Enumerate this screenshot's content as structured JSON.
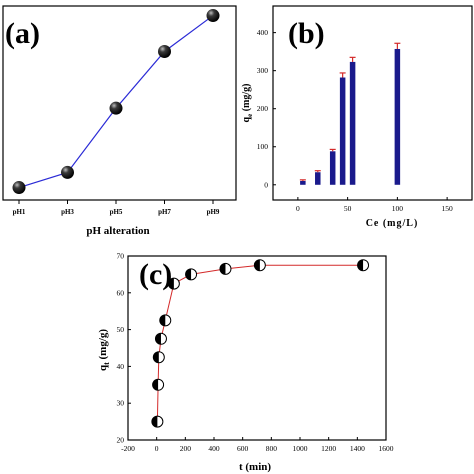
{
  "chart_data": [
    {
      "panel": "(a)",
      "type": "line",
      "categories": [
        "pH1",
        "pH3",
        "pH5",
        "pH7",
        "pH9"
      ],
      "values": [
        0.05,
        0.13,
        0.47,
        0.77,
        0.96
      ],
      "ylim": [
        0,
        1
      ],
      "xlabel": "pH alteration",
      "ylabel": "",
      "line_color": "#2b2bd6",
      "marker": "black-sphere"
    },
    {
      "panel": "(b)",
      "type": "bar",
      "x": [
        5,
        20,
        35,
        45,
        55,
        100
      ],
      "values": [
        10,
        33,
        88,
        282,
        323,
        357
      ],
      "errors": [
        3,
        4,
        5,
        12,
        12,
        15
      ],
      "xlim": [
        -25,
        175
      ],
      "xticks": [
        0,
        50,
        100,
        150
      ],
      "ylim": [
        -40,
        470
      ],
      "yticks": [
        0,
        100,
        200,
        300,
        400
      ],
      "xlabel": "Ce (mg/L)",
      "ylabel": "qe (mg/g)",
      "ylabel_main": "q",
      "ylabel_sub": "e",
      "ylabel_rest": " (mg/g)",
      "bar_color": "#1a1a8c",
      "error_color": "#d42a2a"
    },
    {
      "panel": "(c)",
      "type": "line",
      "x": [
        5,
        10,
        15,
        30,
        60,
        120,
        240,
        480,
        720,
        1440
      ],
      "values": [
        25,
        35,
        42.5,
        47.5,
        52.5,
        62.5,
        65,
        66.5,
        67.5,
        67.5
      ],
      "xlim": [
        -200,
        1600
      ],
      "xticks": [
        -200,
        0,
        200,
        400,
        600,
        800,
        1000,
        1200,
        1400,
        1600
      ],
      "ylim": [
        20,
        70
      ],
      "yticks": [
        20,
        30,
        40,
        50,
        60,
        70
      ],
      "xlabel": "t (min)",
      "ylabel": "qt (mg/g)",
      "ylabel_main": "q",
      "ylabel_sub": "t",
      "ylabel_rest": " (mg/g)",
      "line_color": "#d42a2a",
      "marker": "half-filled-circle"
    }
  ]
}
